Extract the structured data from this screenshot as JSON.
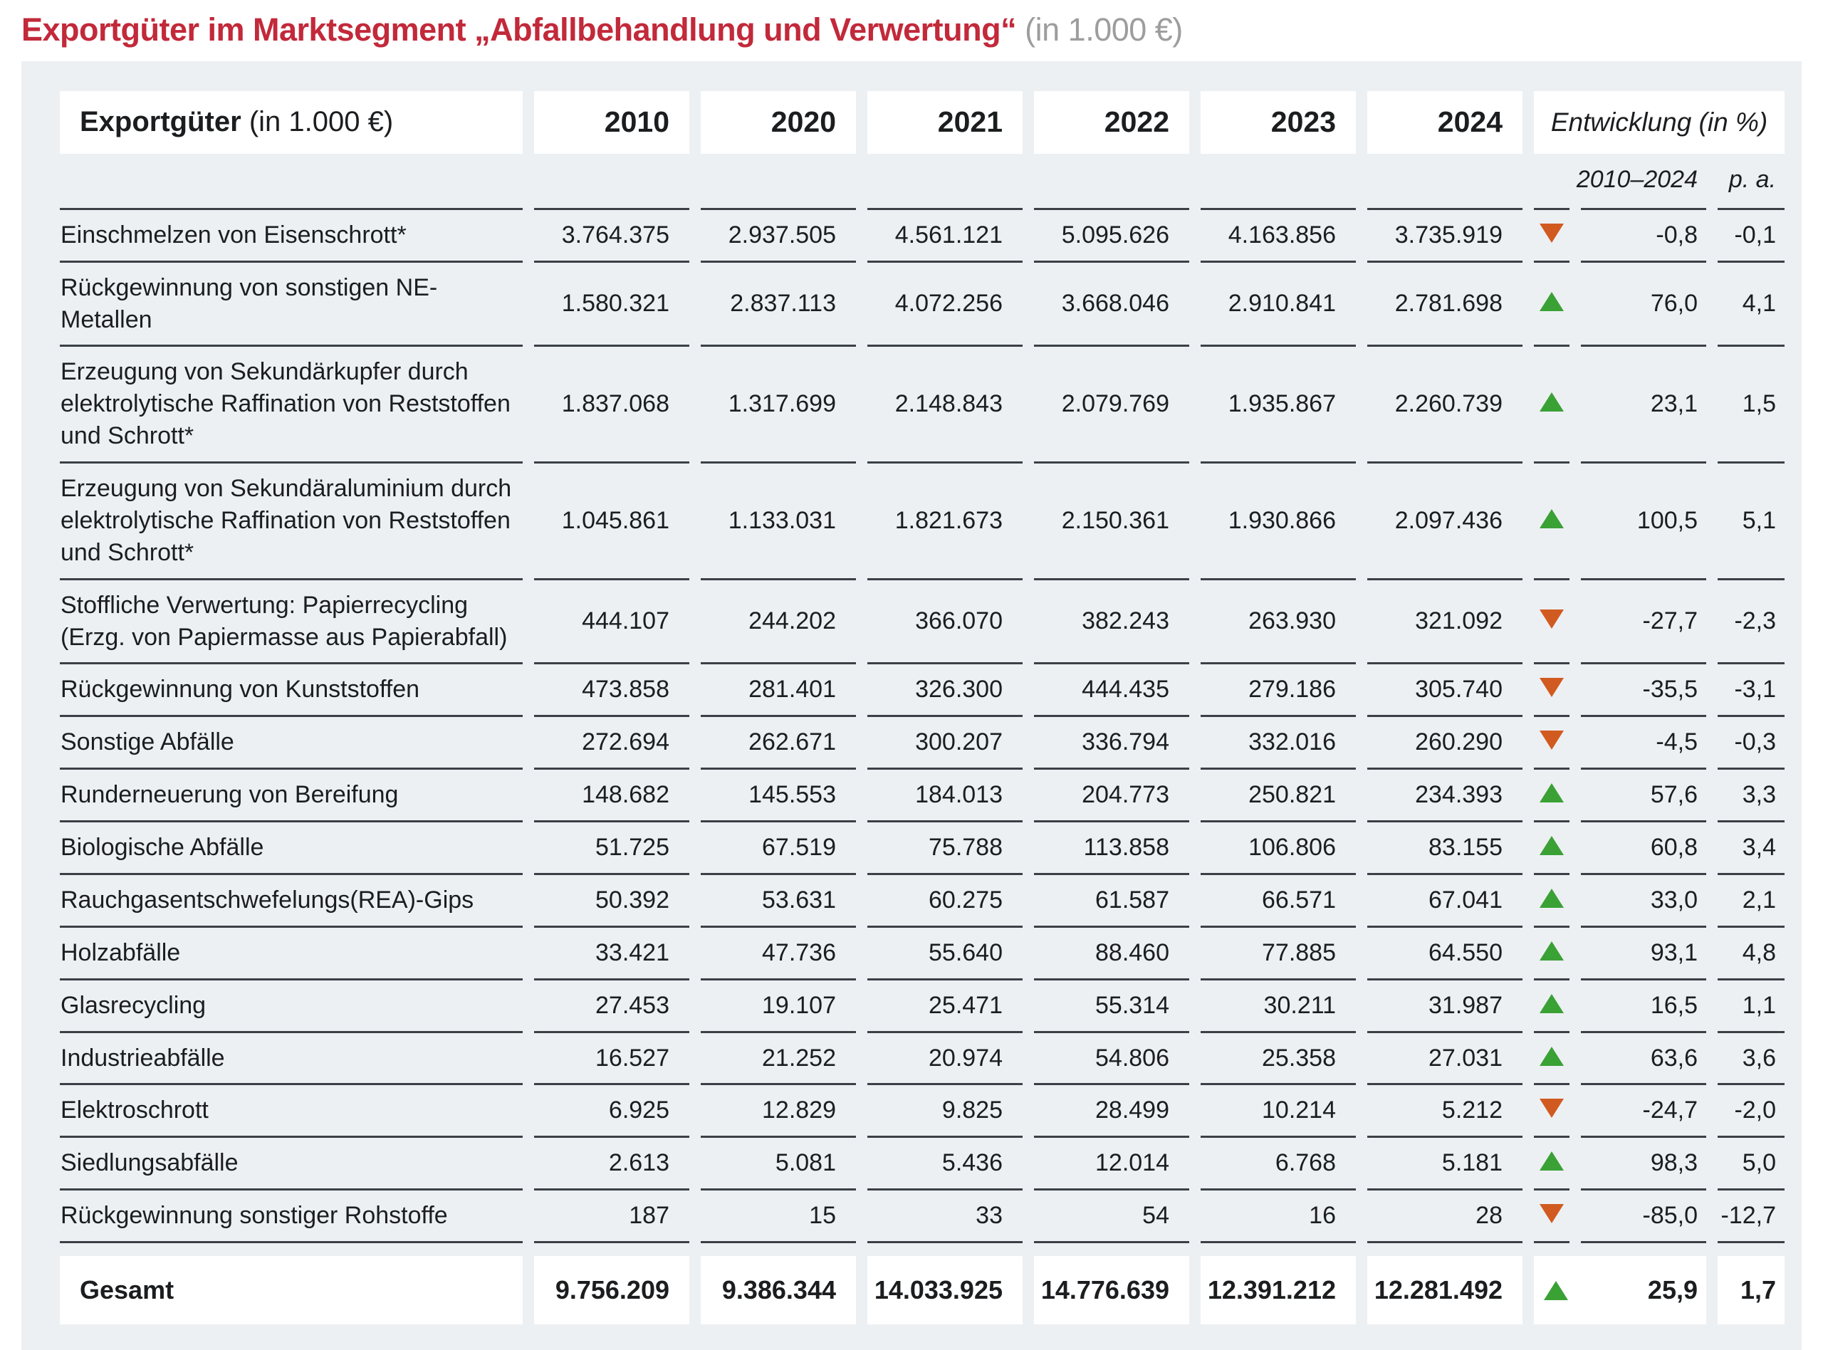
{
  "page": {
    "title_main": "Exportgüter im Marktsegment „Abfallbehandlung und Verwertung“",
    "title_suffix": "(in 1.000 €)"
  },
  "colors": {
    "title_red": "#c2293a",
    "title_gray": "#9d9d9d",
    "panel_bg": "#edf0f3",
    "box_bg": "#ffffff",
    "line": "#3a4046",
    "text": "#1b1d1f",
    "up_green": "#3aa135",
    "down_orange": "#d15a20"
  },
  "table": {
    "header": {
      "label_bold": "Exportgüter",
      "label_normal": "(in 1.000 €)",
      "years": [
        "2010",
        "2020",
        "2021",
        "2022",
        "2023",
        "2024"
      ],
      "entwicklung": "Entwicklung (in %)",
      "sub_range": "2010–2024",
      "sub_pa": "p. a."
    },
    "rows": [
      {
        "label": "Einschmelzen von Eisenschrott*",
        "values": [
          "3.764.375",
          "2.937.505",
          "4.561.121",
          "5.095.626",
          "4.163.856",
          "3.735.919"
        ],
        "trend": "down",
        "range": "-0,8",
        "pa": "-0,1"
      },
      {
        "label": "Rückgewinnung von sonstigen NE-Metallen",
        "values": [
          "1.580.321",
          "2.837.113",
          "4.072.256",
          "3.668.046",
          "2.910.841",
          "2.781.698"
        ],
        "trend": "up",
        "range": "76,0",
        "pa": "4,1"
      },
      {
        "label": "Erzeugung von Sekundärkupfer durch elektrolytische Raffination von Reststoffen und Schrott*",
        "values": [
          "1.837.068",
          "1.317.699",
          "2.148.843",
          "2.079.769",
          "1.935.867",
          "2.260.739"
        ],
        "trend": "up",
        "range": "23,1",
        "pa": "1,5"
      },
      {
        "label": "Erzeugung von Sekundäraluminium durch elektrolytische Raffination von Reststoffen und Schrott*",
        "values": [
          "1.045.861",
          "1.133.031",
          "1.821.673",
          "2.150.361",
          "1.930.866",
          "2.097.436"
        ],
        "trend": "up",
        "range": "100,5",
        "pa": "5,1"
      },
      {
        "label": "Stoffliche Verwertung: Papierrecycling (Erzg. von Papiermasse aus Papierabfall)",
        "values": [
          "444.107",
          "244.202",
          "366.070",
          "382.243",
          "263.930",
          "321.092"
        ],
        "trend": "down",
        "range": "-27,7",
        "pa": "-2,3"
      },
      {
        "label": "Rückgewinnung von Kunststoffen",
        "values": [
          "473.858",
          "281.401",
          "326.300",
          "444.435",
          "279.186",
          "305.740"
        ],
        "trend": "down",
        "range": "-35,5",
        "pa": "-3,1"
      },
      {
        "label": "Sonstige Abfälle",
        "values": [
          "272.694",
          "262.671",
          "300.207",
          "336.794",
          "332.016",
          "260.290"
        ],
        "trend": "down",
        "range": "-4,5",
        "pa": "-0,3"
      },
      {
        "label": "Runderneuerung von Bereifung",
        "values": [
          "148.682",
          "145.553",
          "184.013",
          "204.773",
          "250.821",
          "234.393"
        ],
        "trend": "up",
        "range": "57,6",
        "pa": "3,3"
      },
      {
        "label": "Biologische Abfälle",
        "values": [
          "51.725",
          "67.519",
          "75.788",
          "113.858",
          "106.806",
          "83.155"
        ],
        "trend": "up",
        "range": "60,8",
        "pa": "3,4"
      },
      {
        "label": "Rauchgasentschwefelungs(REA)-Gips",
        "values": [
          "50.392",
          "53.631",
          "60.275",
          "61.587",
          "66.571",
          "67.041"
        ],
        "trend": "up",
        "range": "33,0",
        "pa": "2,1"
      },
      {
        "label": "Holzabfälle",
        "values": [
          "33.421",
          "47.736",
          "55.640",
          "88.460",
          "77.885",
          "64.550"
        ],
        "trend": "up",
        "range": "93,1",
        "pa": "4,8"
      },
      {
        "label": "Glasrecycling",
        "values": [
          "27.453",
          "19.107",
          "25.471",
          "55.314",
          "30.211",
          "31.987"
        ],
        "trend": "up",
        "range": "16,5",
        "pa": "1,1"
      },
      {
        "label": "Industrieabfälle",
        "values": [
          "16.527",
          "21.252",
          "20.974",
          "54.806",
          "25.358",
          "27.031"
        ],
        "trend": "up",
        "range": "63,6",
        "pa": "3,6"
      },
      {
        "label": "Elektroschrott",
        "values": [
          "6.925",
          "12.829",
          "9.825",
          "28.499",
          "10.214",
          "5.212"
        ],
        "trend": "down",
        "range": "-24,7",
        "pa": "-2,0"
      },
      {
        "label": "Siedlungsabfälle",
        "values": [
          "2.613",
          "5.081",
          "5.436",
          "12.014",
          "6.768",
          "5.181"
        ],
        "trend": "up",
        "range": "98,3",
        "pa": "5,0"
      },
      {
        "label": "Rückgewinnung sonstiger Rohstoffe",
        "values": [
          "187",
          "15",
          "33",
          "54",
          "16",
          "28"
        ],
        "trend": "down",
        "range": "-85,0",
        "pa": "-12,7"
      }
    ],
    "total": {
      "label": "Gesamt",
      "values": [
        "9.756.209",
        "9.386.344",
        "14.033.925",
        "14.776.639",
        "12.391.212",
        "12.281.492"
      ],
      "trend": "up",
      "range": "25,9",
      "pa": "1,7"
    }
  }
}
